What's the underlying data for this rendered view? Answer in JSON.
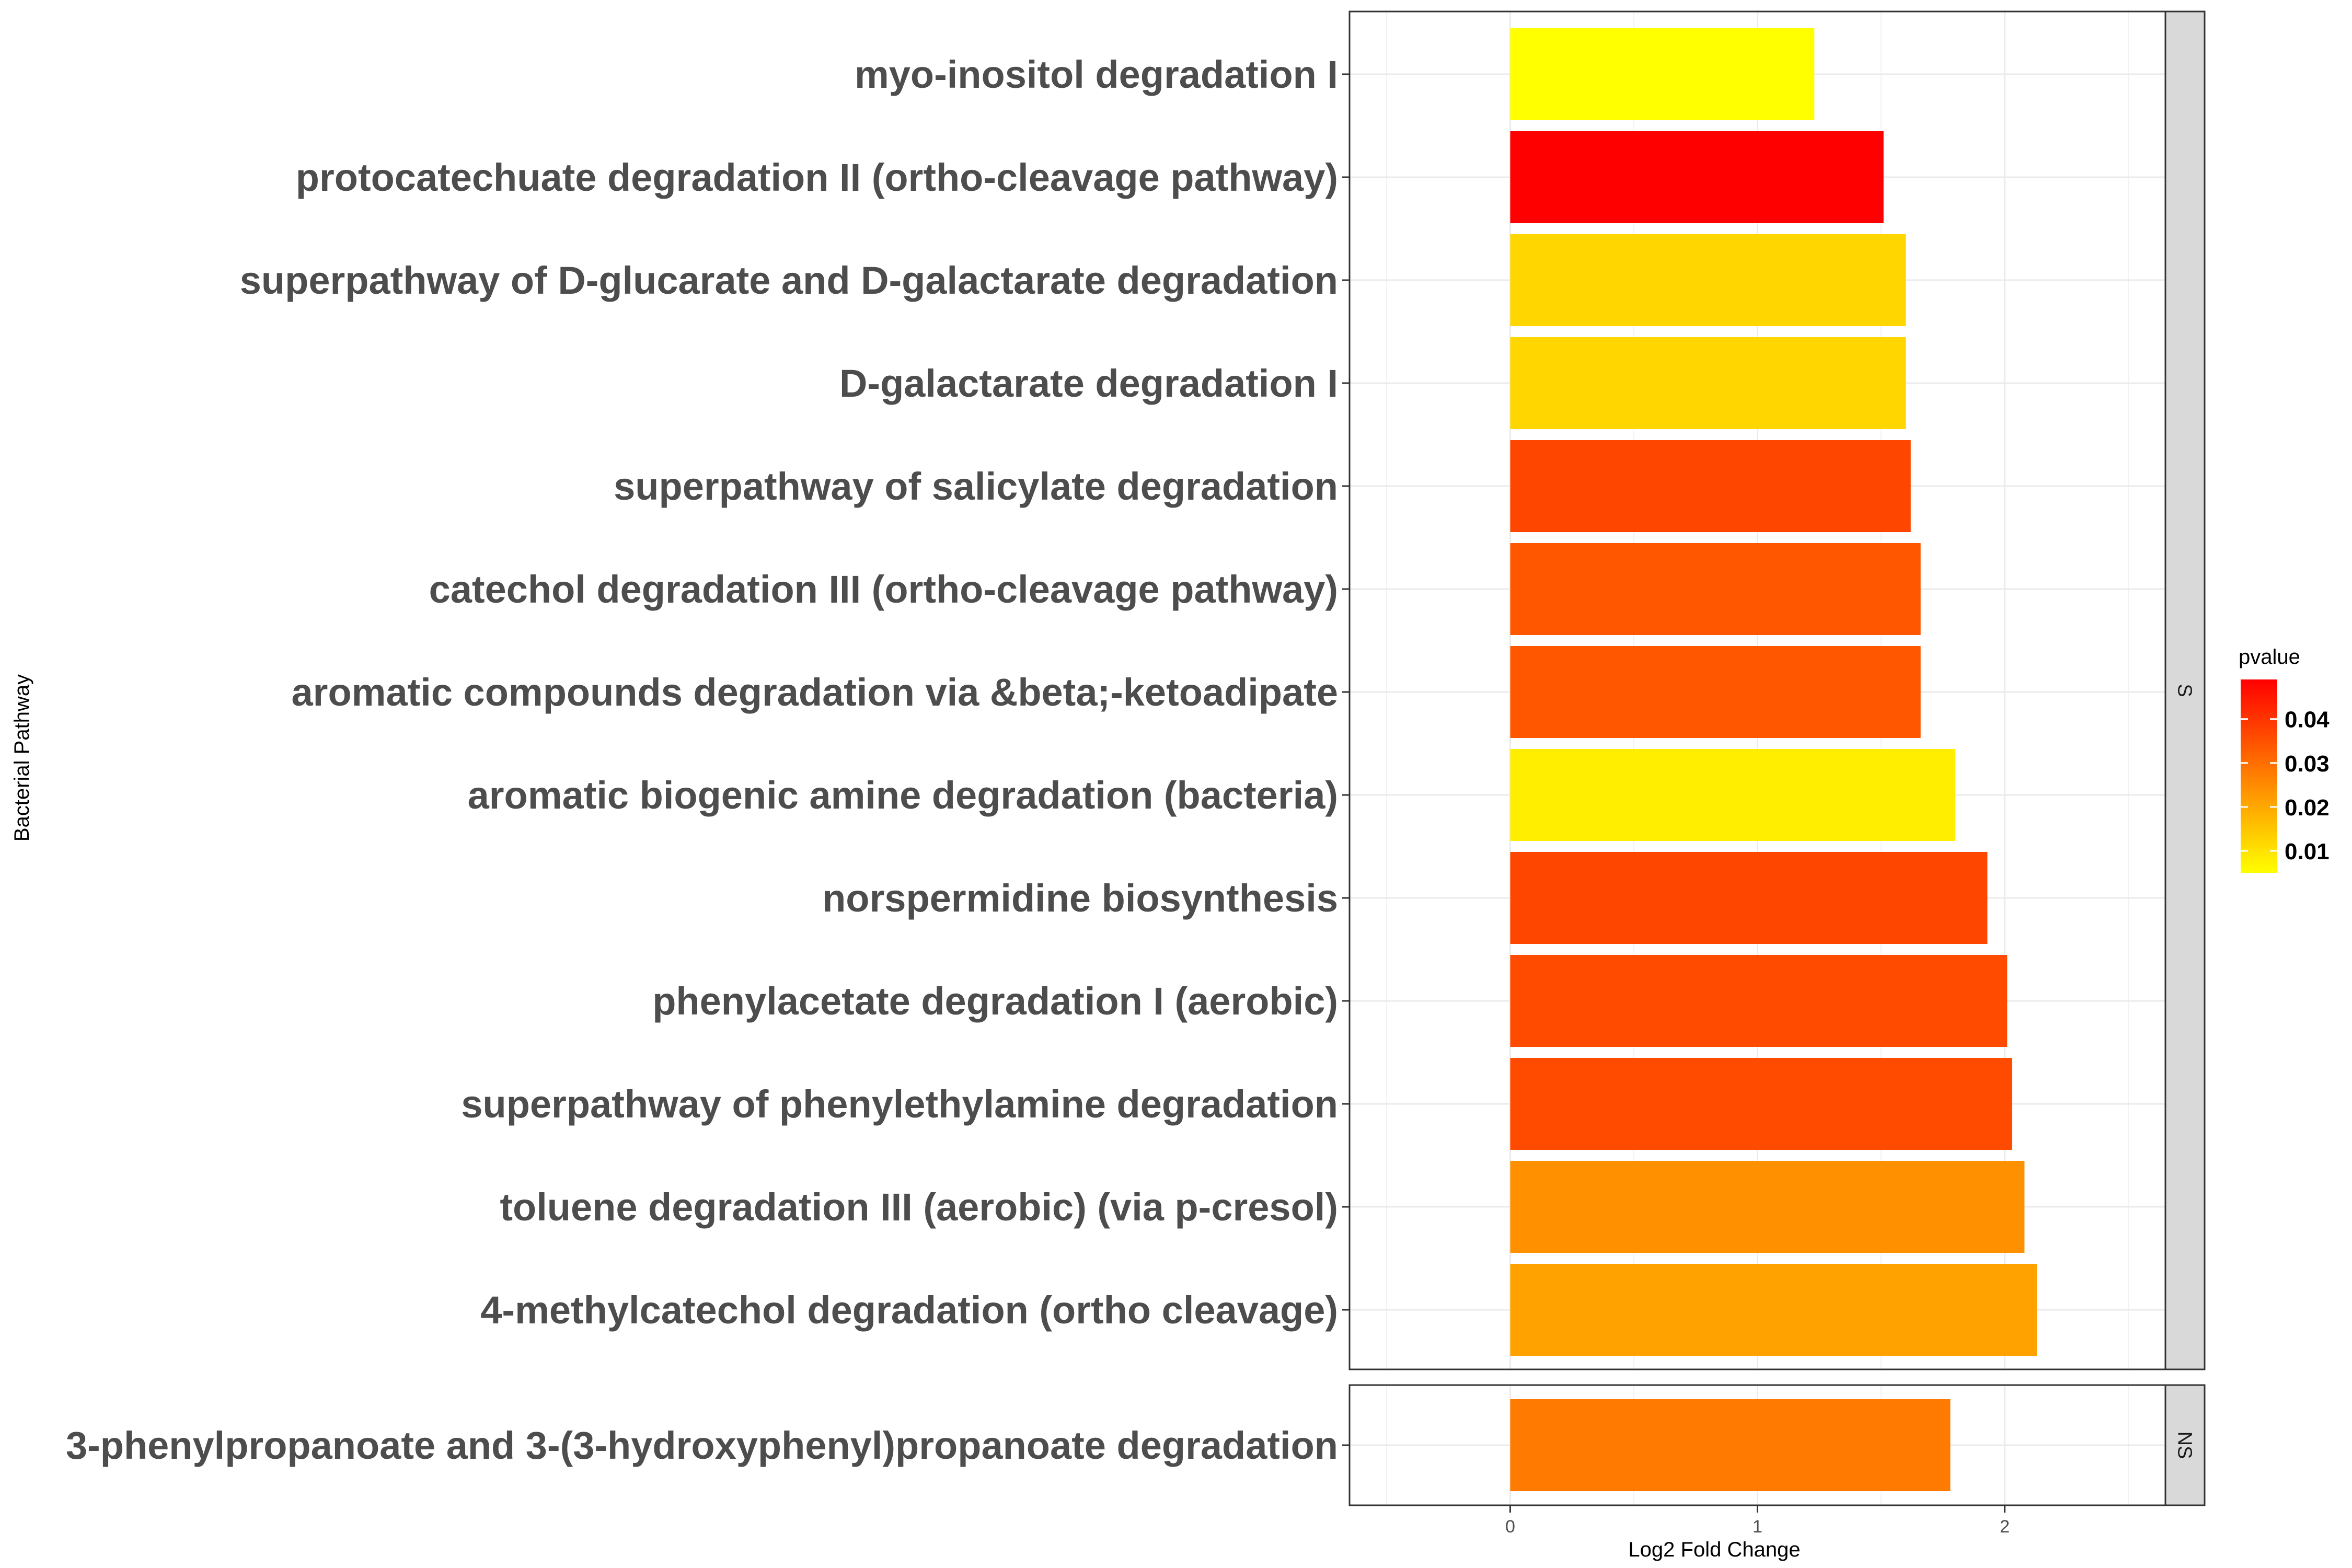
{
  "chart_data": {
    "type": "bar",
    "orientation": "horizontal",
    "xlabel": "Log2 Fold Change",
    "ylabel": "Bacterial Pathway",
    "xlim": [
      -0.65,
      2.65
    ],
    "xticks": [
      0,
      1,
      2
    ],
    "grid": true,
    "legend": {
      "title": "pvalue",
      "placement": "right",
      "range": [
        0.005,
        0.049
      ],
      "ticks": [
        0.01,
        0.02,
        0.03,
        0.04
      ],
      "tick_labels": [
        "0.01",
        "0.02",
        "0.03",
        "0.04"
      ],
      "low_color": "#ffff00",
      "high_color": "#ff0000"
    },
    "panels": [
      {
        "strip": "S",
        "bars": [
          {
            "label": "myo-inositol degradation I",
            "value": 1.23,
            "pvalue": 0.005
          },
          {
            "label": "protocatechuate degradation II (ortho-cleavage pathway)",
            "value": 1.51,
            "pvalue": 0.049
          },
          {
            "label": "superpathway of D-glucarate and D-galactarate degradation",
            "value": 1.6,
            "pvalue": 0.012
          },
          {
            "label": "D-galactarate degradation I",
            "value": 1.6,
            "pvalue": 0.012
          },
          {
            "label": "superpathway of salicylate degradation",
            "value": 1.62,
            "pvalue": 0.037
          },
          {
            "label": "catechol degradation III (ortho-cleavage pathway)",
            "value": 1.66,
            "pvalue": 0.034
          },
          {
            "label": "aromatic compounds degradation via &beta;-ketoadipate",
            "value": 1.66,
            "pvalue": 0.034
          },
          {
            "label": "aromatic biogenic amine degradation (bacteria)",
            "value": 1.8,
            "pvalue": 0.008
          },
          {
            "label": "norspermidine biosynthesis",
            "value": 1.93,
            "pvalue": 0.037
          },
          {
            "label": "phenylacetate degradation I (aerobic)",
            "value": 2.01,
            "pvalue": 0.036
          },
          {
            "label": "superpathway of phenylethylamine degradation",
            "value": 2.03,
            "pvalue": 0.036
          },
          {
            "label": "toluene degradation III (aerobic) (via p-cresol)",
            "value": 2.08,
            "pvalue": 0.024
          },
          {
            "label": "4-methylcatechol degradation (ortho cleavage)",
            "value": 2.13,
            "pvalue": 0.021
          }
        ]
      },
      {
        "strip": "NS",
        "bars": [
          {
            "label": "3-phenylpropanoate and 3-(3-hydroxyphenyl)propanoate degradation",
            "value": 1.78,
            "pvalue": 0.028
          }
        ]
      }
    ]
  }
}
